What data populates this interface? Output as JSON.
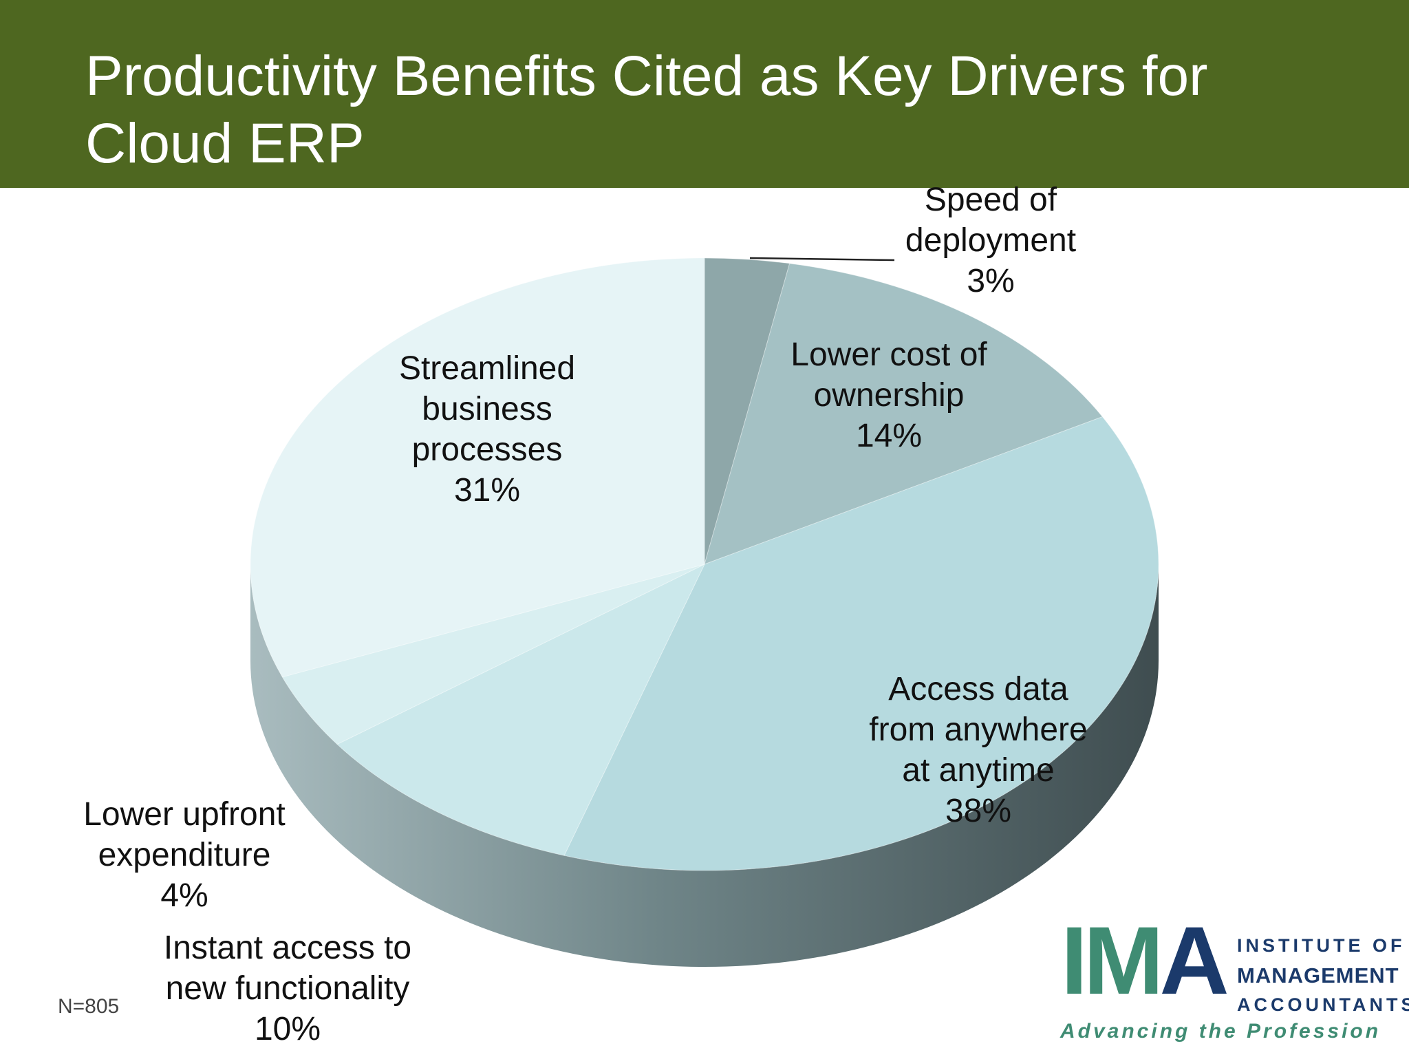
{
  "header": {
    "title_line1": "Productivity Benefits Cited as Key Drivers for",
    "title_line2": "Cloud ERP"
  },
  "chart_data": {
    "type": "pie",
    "title": "Productivity Benefits Cited as Key Drivers for Cloud ERP",
    "slices": [
      {
        "label_lines": [
          "Speed of",
          "deployment",
          "3%"
        ],
        "label": "Speed of deployment",
        "value": 3,
        "color": "#8ea7a9"
      },
      {
        "label_lines": [
          "Lower cost of",
          "ownership",
          "14%"
        ],
        "label": "Lower cost of ownership",
        "value": 14,
        "color": "#a4c1c4"
      },
      {
        "label_lines": [
          "Access data",
          "from anywhere",
          "at anytime",
          "38%"
        ],
        "label": "Access data from anywhere at anytime",
        "value": 38,
        "color": "#b6dadf"
      },
      {
        "label_lines": [
          "Instant access to",
          "new functionality",
          "10%"
        ],
        "label": "Instant access to new functionality",
        "value": 10,
        "color": "#cbe8eb"
      },
      {
        "label_lines": [
          "Lower upfront",
          "expenditure",
          "4%"
        ],
        "label": "Lower upfront expenditure",
        "value": 4,
        "color": "#d9eff1"
      },
      {
        "label_lines": [
          "Streamlined",
          "business",
          "processes",
          "31%"
        ],
        "label": "Streamlined business processes",
        "value": 31,
        "color": "#e6f4f6"
      }
    ],
    "note": "N=805"
  },
  "logo": {
    "letters": [
      "I",
      "M",
      "A"
    ],
    "line1": "INSTITUTE OF",
    "line2": "MANAGEMENT",
    "line3": "ACCOUNTANTS",
    "tagline": "Advancing the Profession"
  }
}
